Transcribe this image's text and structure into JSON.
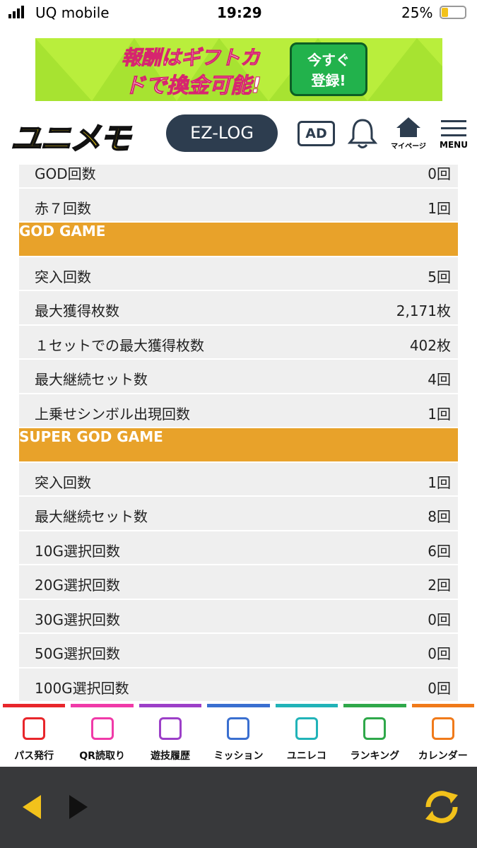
{
  "status_bar": {
    "carrier": "UQ mobile",
    "time": "19:29",
    "battery": "25%"
  },
  "ad_banner": {
    "text_lines": [
      "報酬はギフトカ",
      "ドで換金可能!"
    ],
    "button_lines": [
      "今すぐ",
      "登録!"
    ]
  },
  "header": {
    "logo": "ユニメモ",
    "ez_log": "EZ-LOG",
    "ad": "AD",
    "mypage": "マイページ",
    "menu": "MENU"
  },
  "sections": [
    {
      "rows": [
        [
          "GOD回数",
          "0回"
        ],
        [
          "赤７回数",
          "1回"
        ]
      ]
    },
    {
      "title": "GOD GAME",
      "rows": [
        [
          "突入回数",
          "5回"
        ],
        [
          "最大獲得枚数",
          "2,171枚"
        ],
        [
          "１セットでの最大獲得枚数",
          "402枚"
        ],
        [
          "最大継続セット数",
          "4回"
        ],
        [
          "上乗せシンボル出現回数",
          "1回"
        ]
      ]
    },
    {
      "title": "SUPER GOD GAME",
      "rows": [
        [
          "突入回数",
          "1回"
        ],
        [
          "最大継続セット数",
          "8回"
        ],
        [
          "10G選択回数",
          "6回"
        ],
        [
          "20G選択回数",
          "2回"
        ],
        [
          "30G選択回数",
          "0回"
        ],
        [
          "50G選択回数",
          "0回"
        ],
        [
          "100G選択回数",
          "0回"
        ]
      ]
    }
  ],
  "bottom_nav": [
    "パス発行",
    "QR読取り",
    "遊技履歴",
    "ミッション",
    "ユニレコ",
    "ランキング",
    "カレンダー"
  ]
}
